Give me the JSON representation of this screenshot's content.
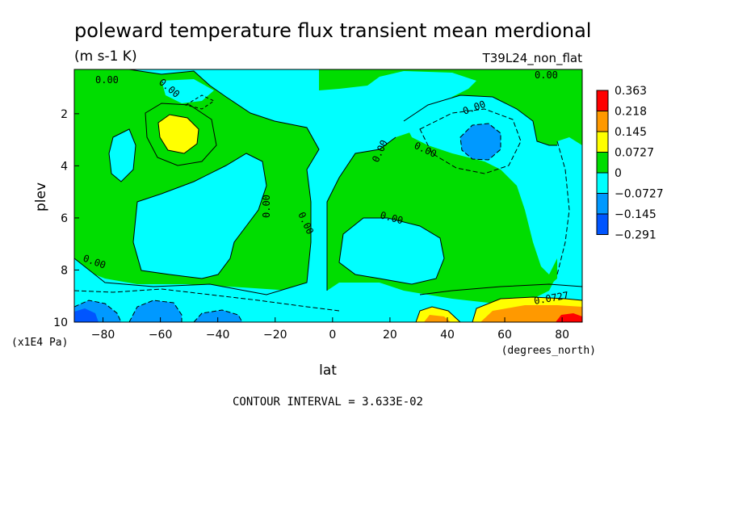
{
  "chart_data": {
    "type": "heatmap",
    "title": "poleward temperature flux transient mean merdional",
    "units": "(m s-1 K)",
    "run_label": "T39L24_non_flat",
    "xlabel": "lat",
    "x_units": "(degrees_north)",
    "ylabel": "plev",
    "y_units": "(x1E4 Pa)",
    "xlim": [
      -90,
      87
    ],
    "ylim": [
      10,
      0.3
    ],
    "x_ticks": [
      "-80",
      "-60",
      "-40",
      "-20",
      "0",
      "20",
      "40",
      "60",
      "80"
    ],
    "y_ticks": [
      "2",
      "4",
      "6",
      "8",
      "10"
    ],
    "contour_interval_text": "CONTOUR INTERVAL = 3.633E-02",
    "contour_labels": [
      "0.00",
      "0.00",
      "0.00",
      "0.00",
      "0.00",
      "0.00",
      "0.00",
      "0.00",
      "0.00",
      "0.00",
      "0.0727"
    ],
    "colorbar": {
      "labels": [
        "0.363",
        "0.218",
        "0.145",
        "0.0727",
        "0",
        "−0.0727",
        "−0.145",
        "−0.291"
      ],
      "colors": [
        "#ff0000",
        "#ff9900",
        "#ffff00",
        "#00dd00",
        "#00ffff",
        "#0099ff",
        "#0055ff"
      ]
    }
  }
}
